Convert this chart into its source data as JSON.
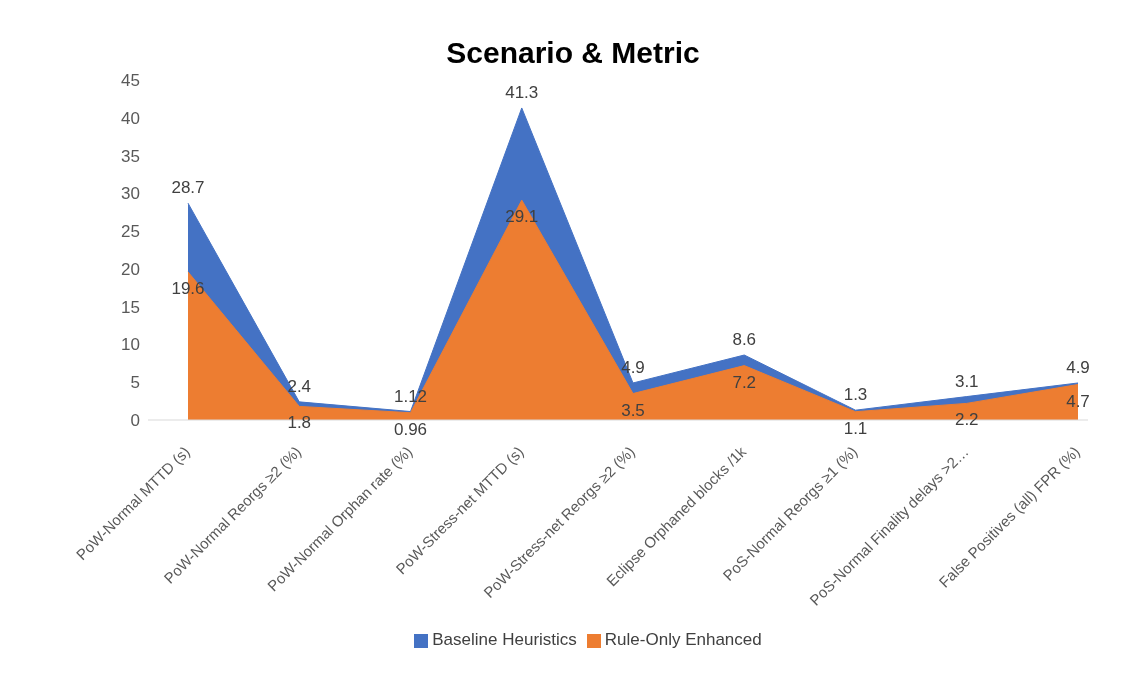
{
  "chart_data": {
    "type": "area",
    "title": "Scenario & Metric",
    "categories": [
      "PoW-Normal MTTD (s)",
      "PoW-Normal Reorgs ≥2 (%)",
      "PoW-Normal Orphan rate (%)",
      "PoW-Stress-net MTTD (s)",
      "PoW-Stress-net Reorgs ≥2 (%)",
      "Eclipse Orphaned blocks /1k",
      "PoS-Normal Reorgs ≥1 (%)",
      "PoS-Normal Finality delays >2…",
      "False Positives (all) FPR (%)"
    ],
    "series": [
      {
        "name": "Baseline Heuristics",
        "color": "#4472c4",
        "values": [
          28.7,
          2.4,
          1.12,
          41.3,
          4.9,
          8.6,
          1.3,
          3.1,
          4.9
        ]
      },
      {
        "name": "Rule-Only Enhanced",
        "color": "#ed7d31",
        "values": [
          19.6,
          1.8,
          0.96,
          29.1,
          3.5,
          7.2,
          1.1,
          2.2,
          4.7
        ]
      }
    ],
    "ylim": [
      0,
      45
    ],
    "yticks": [
      0,
      5,
      10,
      15,
      20,
      25,
      30,
      35,
      40,
      45
    ],
    "grid": false,
    "legend": "bottom",
    "data_labels": true
  }
}
